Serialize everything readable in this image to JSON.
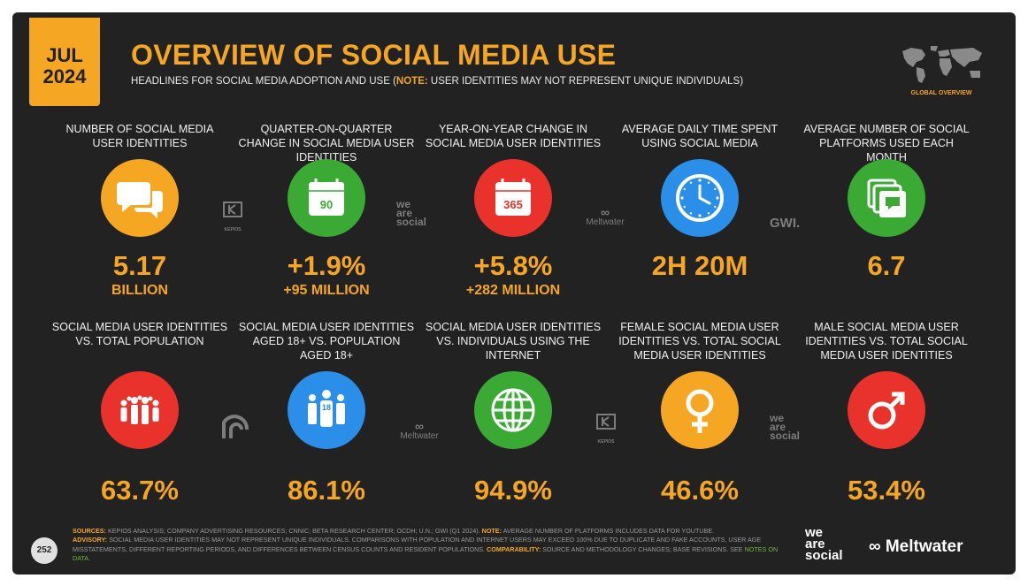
{
  "header": {
    "month": "JUL",
    "year": "2024",
    "title": "OVERVIEW OF SOCIAL MEDIA USE",
    "subtitle_pre": "HEADLINES FOR SOCIAL MEDIA ADOPTION AND USE (",
    "subtitle_note": "NOTE:",
    "subtitle_post": " USER IDENTITIES MAY NOT REPRESENT UNIQUE INDIVIDUALS)",
    "map_label": "GLOBAL OVERVIEW"
  },
  "row1": [
    {
      "label": "NUMBER OF SOCIAL MEDIA USER IDENTITIES",
      "value": "5.17",
      "sub": "BILLION",
      "icon": "chat-bubbles-icon",
      "color": "#f5a623"
    },
    {
      "label": "QUARTER-ON-QUARTER CHANGE IN SOCIAL MEDIA USER IDENTITIES",
      "value": "+1.9%",
      "sub": "+95 MILLION",
      "icon": "calendar-icon",
      "icon_text": "90",
      "color": "#3aaa35"
    },
    {
      "label": "YEAR-ON-YEAR CHANGE IN SOCIAL MEDIA USER IDENTITIES",
      "value": "+5.8%",
      "sub": "+282 MILLION",
      "icon": "calendar-icon",
      "icon_text": "365",
      "color": "#e8322b"
    },
    {
      "label": "AVERAGE DAILY TIME SPENT USING SOCIAL MEDIA",
      "value": "2H 20M",
      "sub": "",
      "icon": "clock-icon",
      "color": "#2b8ee8"
    },
    {
      "label": "AVERAGE NUMBER OF SOCIAL PLATFORMS USED EACH MONTH",
      "value": "6.7",
      "sub": "",
      "icon": "stacked-apps-icon",
      "color": "#3aaa35"
    }
  ],
  "row2": [
    {
      "label": "SOCIAL MEDIA USER IDENTITIES vs. TOTAL POPULATION",
      "value": "63.7%",
      "icon": "crowd-icon",
      "color": "#e8322b"
    },
    {
      "label": "SOCIAL MEDIA USER IDENTITIES AGED 18+ vs. POPULATION AGED 18+",
      "value": "86.1%",
      "icon": "adults-18-icon",
      "icon_text": "18",
      "color": "#2b8ee8"
    },
    {
      "label": "SOCIAL MEDIA USER IDENTITIES vs. INDIVIDUALS USING THE INTERNET",
      "value": "94.9%",
      "icon": "globe-icon",
      "color": "#3aaa35"
    },
    {
      "label": "FEMALE SOCIAL MEDIA USER IDENTITIES vs. TOTAL SOCIAL MEDIA USER IDENTITIES",
      "value": "46.6%",
      "icon": "female-symbol-icon",
      "color": "#f5a623"
    },
    {
      "label": "MALE SOCIAL MEDIA USER IDENTITIES vs. TOTAL SOCIAL MEDIA USER IDENTITIES",
      "value": "53.4%",
      "icon": "male-symbol-icon",
      "color": "#e8322b"
    }
  ],
  "sources": {
    "kepios": "KEPIOS",
    "was": [
      "we",
      "are",
      "social"
    ],
    "meltwater": "Meltwater",
    "gwi": "GWI."
  },
  "footer": {
    "sources_key": "SOURCES:",
    "sources_text": " KEPIOS ANALYSIS; COMPANY ADVERTISING RESOURCES; CNNIC; BETA RESEARCH CENTER; OCDH; U.N.; GWI (Q1 2024). ",
    "note_key": "NOTE:",
    "note_text": " AVERAGE NUMBER OF PLATFORMS INCLUDES DATA FOR YOUTUBE.",
    "advisory_key": "ADVISORY:",
    "advisory_text": " SOCIAL MEDIA USER IDENTITIES MAY NOT REPRESENT UNIQUE INDIVIDUALS. COMPARISONS WITH POPULATION AND INTERNET USERS MAY EXCEED 100% DUE TO DUPLICATE AND FAKE ACCOUNTS, USER AGE MISSTATEMENTS, DIFFERENT REPORTING PERIODS, AND DIFFERENCES BETWEEN CENSUS COUNTS AND RESIDENT POPULATIONS. ",
    "comparability_key": "COMPARABILITY:",
    "comparability_text": " SOURCE AND METHODOLOGY CHANGES; BASE REVISIONS. SEE ",
    "notes_link": "NOTES ON DATA",
    "end": ".",
    "page_number": "252",
    "logo_was": [
      "we",
      "are",
      "social"
    ],
    "logo_meltwater": "Meltwater"
  },
  "colors": {
    "accent": "#f5a623",
    "background": "#222222",
    "green": "#3aaa35",
    "red": "#e8322b",
    "blue": "#2b8ee8"
  }
}
